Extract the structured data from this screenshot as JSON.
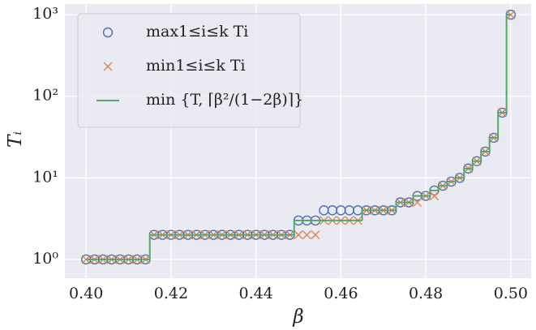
{
  "chart_data": {
    "type": "scatter",
    "log_y": true,
    "grid": true,
    "legend": "upper left",
    "xlabel": "β",
    "ylabel": "Tᵢ",
    "xlim": [
      0.395,
      0.5048
    ],
    "ylim": [
      0.59,
      1350
    ],
    "xticks": [
      {
        "value": 0.4,
        "label": "0.40"
      },
      {
        "value": 0.42,
        "label": "0.42"
      },
      {
        "value": 0.44,
        "label": "0.44"
      },
      {
        "value": 0.46,
        "label": "0.46"
      },
      {
        "value": 0.48,
        "label": "0.48"
      },
      {
        "value": 0.5,
        "label": "0.50"
      }
    ],
    "yticks": [
      {
        "value": 1,
        "label": "10⁰"
      },
      {
        "value": 10,
        "label": "10¹"
      },
      {
        "value": 100,
        "label": "10²"
      },
      {
        "value": 1000,
        "label": "10³"
      }
    ],
    "x": [
      0.4,
      0.402,
      0.404,
      0.406,
      0.408,
      0.41,
      0.412,
      0.414,
      0.416,
      0.418,
      0.42,
      0.422,
      0.424,
      0.426,
      0.428,
      0.43,
      0.432,
      0.434,
      0.436,
      0.438,
      0.44,
      0.442,
      0.444,
      0.446,
      0.448,
      0.45,
      0.452,
      0.454,
      0.456,
      0.458,
      0.46,
      0.462,
      0.464,
      0.466,
      0.468,
      0.47,
      0.472,
      0.474,
      0.476,
      0.478,
      0.48,
      0.482,
      0.484,
      0.486,
      0.488,
      0.49,
      0.492,
      0.494,
      0.496,
      0.498,
      0.5
    ],
    "series": [
      {
        "name": "max1≤i≤k Ti",
        "color": "#4c72b0",
        "marker": "circle",
        "values": [
          1,
          1,
          1,
          1,
          1,
          1,
          1,
          1,
          2,
          2,
          2,
          2,
          2,
          2,
          2,
          2,
          2,
          2,
          2,
          2,
          2,
          2,
          2,
          2,
          2,
          3,
          3,
          3,
          4,
          4,
          4,
          4,
          4,
          4,
          4,
          4,
          4,
          5,
          5,
          6,
          6,
          7,
          8,
          9,
          10,
          13,
          16,
          21,
          31,
          63,
          1000
        ]
      },
      {
        "name": "min1≤i≤k Ti",
        "color": "#dd8452",
        "marker": "cross",
        "values": [
          1,
          1,
          1,
          1,
          1,
          1,
          1,
          1,
          2,
          2,
          2,
          2,
          2,
          2,
          2,
          2,
          2,
          2,
          2,
          2,
          2,
          2,
          2,
          2,
          2,
          2,
          2,
          2,
          3,
          3,
          3,
          3,
          3,
          4,
          4,
          4,
          4,
          5,
          5,
          5,
          6,
          6,
          8,
          9,
          10,
          13,
          16,
          21,
          31,
          63,
          1000
        ]
      },
      {
        "name": "min {T, ⌈β²/(1−2β)⌉}",
        "color": "#55a868",
        "marker": "step",
        "values": [
          1,
          1,
          1,
          1,
          1,
          1,
          1,
          1,
          2,
          2,
          2,
          2,
          2,
          2,
          2,
          2,
          2,
          2,
          2,
          2,
          2,
          2,
          2,
          2,
          2,
          3,
          3,
          3,
          3,
          3,
          3,
          3,
          3,
          4,
          4,
          4,
          4,
          5,
          5,
          6,
          6,
          7,
          8,
          9,
          10,
          13,
          16,
          21,
          31,
          63,
          1000
        ]
      }
    ]
  }
}
